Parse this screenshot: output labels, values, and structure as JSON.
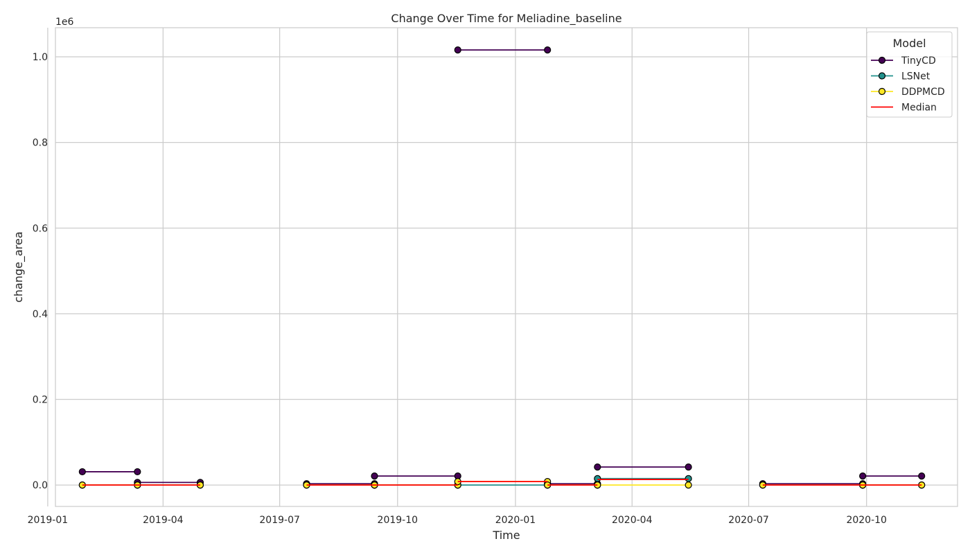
{
  "chart_data": {
    "type": "line",
    "title": "Change Over Time for Meliadine_baseline",
    "xlabel": "Time",
    "ylabel": "change_area",
    "y_offset_text": "1e6",
    "y_scale_multiplier": 1000000,
    "x_range": [
      "2019-01-07",
      "2020-12-11"
    ],
    "ylim": [
      -50000,
      1068000
    ],
    "grid": true,
    "x_ticks": [
      {
        "date": "2019-01-01",
        "label": "2019-01"
      },
      {
        "date": "2019-04-01",
        "label": "2019-04"
      },
      {
        "date": "2019-07-01",
        "label": "2019-07"
      },
      {
        "date": "2019-10-01",
        "label": "2019-10"
      },
      {
        "date": "2020-01-01",
        "label": "2020-01"
      },
      {
        "date": "2020-04-01",
        "label": "2020-04"
      },
      {
        "date": "2020-07-01",
        "label": "2020-07"
      },
      {
        "date": "2020-10-01",
        "label": "2020-10"
      }
    ],
    "y_ticks": [
      {
        "value": 0,
        "label": "0.0"
      },
      {
        "value": 200000,
        "label": "0.2"
      },
      {
        "value": 400000,
        "label": "0.4"
      },
      {
        "value": 600000,
        "label": "0.6"
      },
      {
        "value": 800000,
        "label": "0.8"
      },
      {
        "value": 1000000,
        "label": "1.0"
      }
    ],
    "legend": {
      "title": "Model",
      "placement": "top-right"
    },
    "series": [
      {
        "name": "TinyCD",
        "color": "#440154",
        "marker": true,
        "segments": [
          [
            [
              "2019-01-28",
              31000
            ],
            [
              "2019-03-12",
              31000
            ]
          ],
          [
            [
              "2019-03-12",
              6000
            ],
            [
              "2019-04-30",
              6000
            ]
          ],
          [
            [
              "2019-07-22",
              3000
            ],
            [
              "2019-09-13",
              3000
            ]
          ],
          [
            [
              "2019-09-13",
              21000
            ],
            [
              "2019-11-17",
              21000
            ]
          ],
          [
            [
              "2019-11-17",
              1016000
            ],
            [
              "2020-01-26",
              1016000
            ]
          ],
          [
            [
              "2020-01-26",
              3000
            ],
            [
              "2020-03-05",
              3000
            ]
          ],
          [
            [
              "2020-03-05",
              42000
            ],
            [
              "2020-05-15",
              42000
            ]
          ],
          [
            [
              "2020-07-12",
              3000
            ],
            [
              "2020-09-28",
              3000
            ]
          ],
          [
            [
              "2020-09-28",
              21000
            ],
            [
              "2020-11-13",
              21000
            ]
          ]
        ]
      },
      {
        "name": "LSNet",
        "color": "#21918c",
        "marker": true,
        "segments": [
          [
            [
              "2019-01-28",
              0
            ],
            [
              "2019-03-12",
              0
            ]
          ],
          [
            [
              "2019-03-12",
              0
            ],
            [
              "2019-04-30",
              0
            ]
          ],
          [
            [
              "2019-07-22",
              0
            ],
            [
              "2019-09-13",
              0
            ]
          ],
          [
            [
              "2019-09-13",
              0
            ],
            [
              "2019-11-17",
              0
            ]
          ],
          [
            [
              "2019-11-17",
              0
            ],
            [
              "2020-01-26",
              0
            ]
          ],
          [
            [
              "2020-01-26",
              0
            ],
            [
              "2020-03-05",
              0
            ]
          ],
          [
            [
              "2020-03-05",
              15000
            ],
            [
              "2020-05-15",
              15000
            ]
          ],
          [
            [
              "2020-07-12",
              0
            ],
            [
              "2020-09-28",
              0
            ]
          ],
          [
            [
              "2020-09-28",
              0
            ],
            [
              "2020-11-13",
              0
            ]
          ]
        ]
      },
      {
        "name": "DDPMCD",
        "color": "#fde725",
        "marker": true,
        "segments": [
          [
            [
              "2019-01-28",
              0
            ],
            [
              "2019-03-12",
              0
            ]
          ],
          [
            [
              "2019-03-12",
              0
            ],
            [
              "2019-04-30",
              0
            ]
          ],
          [
            [
              "2019-07-22",
              0
            ],
            [
              "2019-09-13",
              0
            ]
          ],
          [
            [
              "2019-09-13",
              0
            ],
            [
              "2019-11-17",
              0
            ]
          ],
          [
            [
              "2019-11-17",
              8000
            ],
            [
              "2020-01-26",
              8000
            ]
          ],
          [
            [
              "2020-01-26",
              0
            ],
            [
              "2020-03-05",
              0
            ]
          ],
          [
            [
              "2020-03-05",
              0
            ],
            [
              "2020-05-15",
              0
            ]
          ],
          [
            [
              "2020-07-12",
              0
            ],
            [
              "2020-09-28",
              0
            ]
          ],
          [
            [
              "2020-09-28",
              0
            ],
            [
              "2020-11-13",
              0
            ]
          ]
        ]
      },
      {
        "name": "Median",
        "color": "#ff0000",
        "marker": false,
        "segments": [
          [
            [
              "2019-01-28",
              0
            ],
            [
              "2019-03-12",
              0
            ]
          ],
          [
            [
              "2019-03-12",
              0
            ],
            [
              "2019-04-30",
              0
            ]
          ],
          [
            [
              "2019-07-22",
              0
            ],
            [
              "2019-09-13",
              0
            ]
          ],
          [
            [
              "2019-09-13",
              0
            ],
            [
              "2019-11-17",
              0
            ]
          ],
          [
            [
              "2019-11-17",
              8000
            ],
            [
              "2020-01-26",
              8000
            ]
          ],
          [
            [
              "2020-01-26",
              0
            ],
            [
              "2020-03-05",
              0
            ]
          ],
          [
            [
              "2020-03-05",
              13000
            ],
            [
              "2020-05-15",
              13000
            ]
          ],
          [
            [
              "2020-07-12",
              0
            ],
            [
              "2020-09-28",
              0
            ]
          ],
          [
            [
              "2020-09-28",
              0
            ],
            [
              "2020-11-13",
              0
            ]
          ]
        ]
      }
    ]
  }
}
